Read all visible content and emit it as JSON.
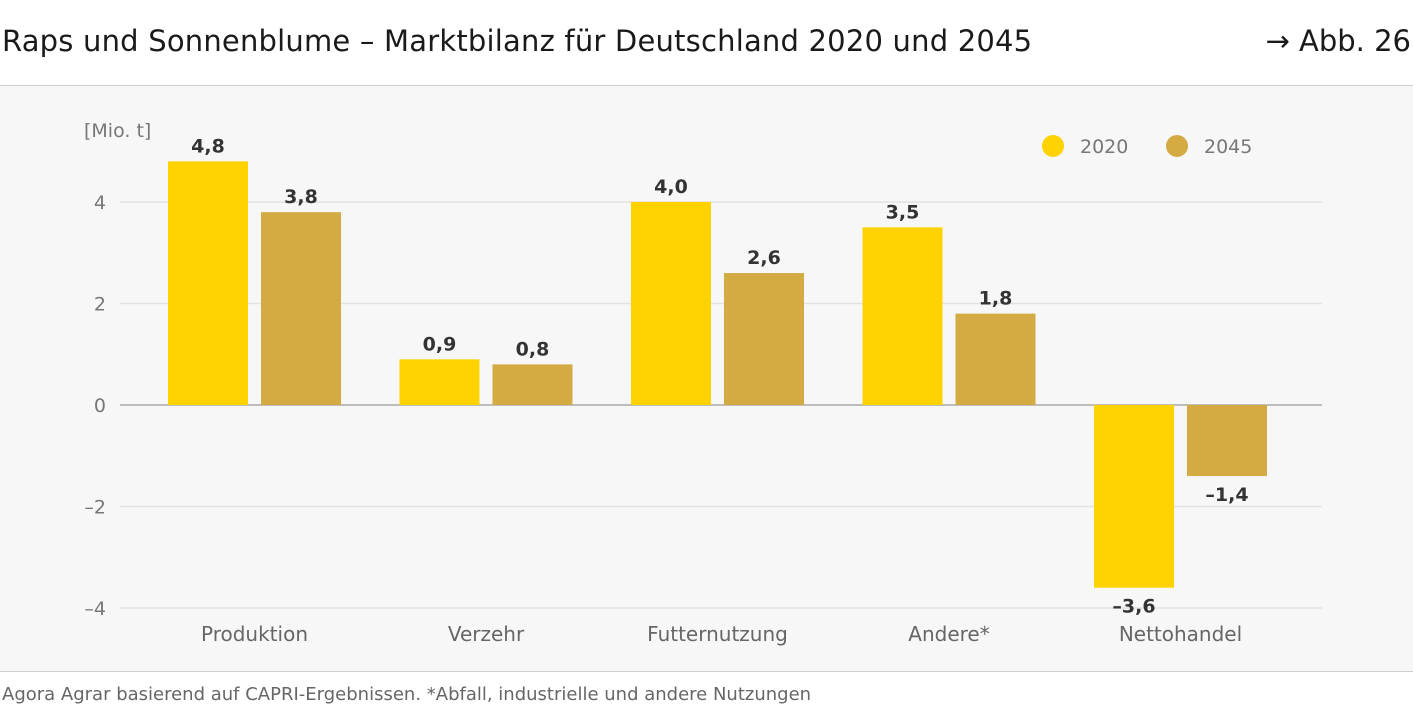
{
  "header": {
    "title": "Raps und Sonnenblume – Marktbilanz für Deutschland 2020 und 2045",
    "figure_ref": "→ Abb. 26"
  },
  "footer": {
    "source": "Agora Agrar basierend auf CAPRI-Ergebnissen. *Abfall, industrielle und andere Nutzungen"
  },
  "chart_data": {
    "type": "bar",
    "ylabel": "[Mio. t]",
    "ylim": [
      -4,
      5
    ],
    "yticks": [
      4,
      2,
      0,
      -2,
      -4
    ],
    "ytick_labels": [
      "4",
      "2",
      "0",
      "–2",
      "–4"
    ],
    "grid": true,
    "legend_position": "top-right",
    "categories": [
      "Produktion",
      "Verzehr",
      "Futternutzung",
      "Andere*",
      "Nettohandel"
    ],
    "series": [
      {
        "name": "2020",
        "color": "#ffd200",
        "values": [
          4.8,
          0.9,
          4.0,
          3.5,
          -3.6
        ],
        "labels": [
          "4,8",
          "0,9",
          "4,0",
          "3,5",
          "–3,6"
        ]
      },
      {
        "name": "2045",
        "color": "#d4aa43",
        "values": [
          3.8,
          0.8,
          2.6,
          1.8,
          -1.4
        ],
        "labels": [
          "3,8",
          "0,8",
          "2,6",
          "1,8",
          "–1,4"
        ]
      }
    ]
  }
}
